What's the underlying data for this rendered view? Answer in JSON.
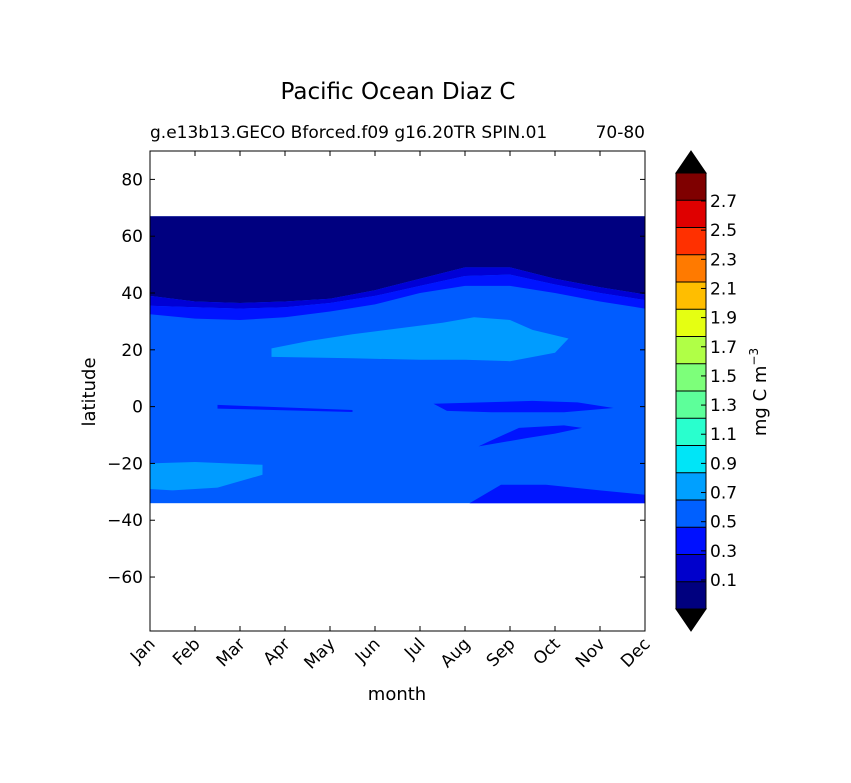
{
  "chart_data": {
    "type": "heatmap",
    "title": "Pacific Ocean Diaz C",
    "subtitle_left": "g.e13b13.GECO Bforced.f09 g16.20TR SPIN.01",
    "subtitle_right": "70-80",
    "xlabel": "month",
    "ylabel": "latitude",
    "x_categories": [
      "Jan",
      "Feb",
      "Mar",
      "Apr",
      "May",
      "Jun",
      "Jul",
      "Aug",
      "Sep",
      "Oct",
      "Nov",
      "Dec"
    ],
    "y_ticks": [
      80,
      60,
      40,
      20,
      0,
      -20,
      -40,
      -60
    ],
    "y_tick_labels": [
      "80",
      "60",
      "40",
      "20",
      "0",
      "−20",
      "−40",
      "−60"
    ],
    "ylim": [
      -79,
      90
    ],
    "data_lat_range": [
      -34,
      67
    ],
    "colorbar": {
      "label": "mg C m",
      "label_superscript": "−3",
      "levels": [
        0.0,
        0.1,
        0.2,
        0.3,
        0.4,
        0.5,
        0.6,
        0.7,
        0.8,
        0.9,
        1.0,
        1.1,
        1.2,
        1.3,
        1.4,
        1.5,
        1.6,
        1.7,
        1.8,
        1.9,
        2.0,
        2.1,
        2.2,
        2.3,
        2.4,
        2.5,
        2.6,
        2.7,
        2.8
      ],
      "tick_labels": [
        "0.1",
        "0.3",
        "0.5",
        "0.7",
        "0.9",
        "1.1",
        "1.3",
        "1.5",
        "1.7",
        "1.9",
        "2.1",
        "2.3",
        "2.5",
        "2.7"
      ],
      "colors": [
        "#00007f",
        "#0000cc",
        "#0010ff",
        "#0060ff",
        "#00a0ff",
        "#00e5f7",
        "#29ffce",
        "#5dff9a",
        "#7dff7a",
        "#b0ff46",
        "#e5ff12",
        "#ffbe00",
        "#ff7a00",
        "#ff3000",
        "#df0000",
        "#7f0000"
      ],
      "extend_low_color": "#000000",
      "extend_high_color": "#000000"
    },
    "fill_colors": {
      "band_0_1": "#000080",
      "band_0_3": "#0000d6",
      "band_0_4": "#0014ff",
      "band_0_5": "#005cff",
      "band_0_7": "#009cff"
    },
    "regions": [
      {
        "level": "band_0_1",
        "polygons": [
          [
            [
              1,
              67
            ],
            [
              12,
              67
            ],
            [
              12,
              39.5
            ],
            [
              11,
              42
            ],
            [
              10,
              45
            ],
            [
              9,
              49
            ],
            [
              8,
              49
            ],
            [
              7,
              45
            ],
            [
              6,
              41
            ],
            [
              5,
              38
            ],
            [
              4,
              37
            ],
            [
              3,
              36.5
            ],
            [
              2,
              37
            ],
            [
              1,
              39
            ]
          ]
        ]
      },
      {
        "level": "band_0_3",
        "polygons": [
          [
            [
              1,
              39
            ],
            [
              2,
              37
            ],
            [
              3,
              36.5
            ],
            [
              4,
              37
            ],
            [
              5,
              38
            ],
            [
              6,
              41
            ],
            [
              7,
              45
            ],
            [
              8,
              49
            ],
            [
              9,
              49
            ],
            [
              10,
              45
            ],
            [
              11,
              42
            ],
            [
              12,
              39.5
            ],
            [
              12,
              37.5
            ],
            [
              11,
              40
            ],
            [
              10,
              43
            ],
            [
              9,
              46.5
            ],
            [
              8,
              46
            ],
            [
              7,
              42.5
            ],
            [
              6,
              39
            ],
            [
              5,
              36.5
            ],
            [
              4,
              35
            ],
            [
              3,
              34.5
            ],
            [
              2,
              35
            ],
            [
              1,
              35.5
            ]
          ]
        ]
      },
      {
        "level": "band_0_4",
        "polygons": [
          [
            [
              1,
              35.5
            ],
            [
              2,
              35
            ],
            [
              3,
              34.5
            ],
            [
              4,
              35
            ],
            [
              5,
              36.5
            ],
            [
              6,
              39
            ],
            [
              7,
              42.5
            ],
            [
              8,
              46
            ],
            [
              9,
              46.5
            ],
            [
              10,
              43
            ],
            [
              11,
              40
            ],
            [
              12,
              37.5
            ],
            [
              12,
              34.5
            ],
            [
              11,
              37
            ],
            [
              10,
              40
            ],
            [
              9,
              42.5
            ],
            [
              8,
              42.5
            ],
            [
              7,
              40
            ],
            [
              6,
              36
            ],
            [
              5,
              33.5
            ],
            [
              4,
              31.5
            ],
            [
              3,
              30.5
            ],
            [
              2,
              31
            ],
            [
              1,
              32.5
            ]
          ],
          [
            [
              7.3,
              1
            ],
            [
              9.5,
              2
            ],
            [
              10.5,
              1.5
            ],
            [
              11.3,
              -0.5
            ],
            [
              10.2,
              -2
            ],
            [
              8.6,
              -2
            ],
            [
              7.6,
              -1.5
            ]
          ],
          [
            [
              8.3,
              -14
            ],
            [
              9.4,
              -11
            ],
            [
              10,
              -9.5
            ],
            [
              10.6,
              -7.5
            ],
            [
              10.2,
              -6.6
            ],
            [
              9.2,
              -7.5
            ],
            [
              8.5,
              -12.5
            ]
          ],
          [
            [
              8.1,
              -34
            ],
            [
              8.8,
              -27.5
            ],
            [
              9.8,
              -27.5
            ],
            [
              11,
              -29.5
            ],
            [
              12,
              -31
            ],
            [
              12,
              -34
            ]
          ],
          [
            [
              2.5,
              0.6
            ],
            [
              5.5,
              -1.2
            ],
            [
              5.5,
              -1.9
            ],
            [
              2.5,
              -0.7
            ]
          ]
        ]
      },
      {
        "level": "band_0_7",
        "polygons": [
          [
            [
              3.7,
              20.5
            ],
            [
              4.5,
              23
            ],
            [
              5.5,
              25.5
            ],
            [
              6.5,
              27.5
            ],
            [
              7.5,
              29.5
            ],
            [
              8.2,
              31.5
            ],
            [
              9,
              30.5
            ],
            [
              9.5,
              27
            ],
            [
              10.3,
              24
            ],
            [
              10,
              19
            ],
            [
              9,
              16
            ],
            [
              8,
              16.5
            ],
            [
              7,
              16.5
            ],
            [
              5.5,
              17
            ],
            [
              3.7,
              17.5
            ]
          ],
          [
            [
              1,
              -20
            ],
            [
              2,
              -19.5
            ],
            [
              3.5,
              -20.5
            ],
            [
              3.5,
              -24
            ],
            [
              2.5,
              -28.5
            ],
            [
              1.5,
              -29.5
            ],
            [
              1,
              -29
            ]
          ]
        ]
      }
    ],
    "base_level": "band_0_5"
  }
}
